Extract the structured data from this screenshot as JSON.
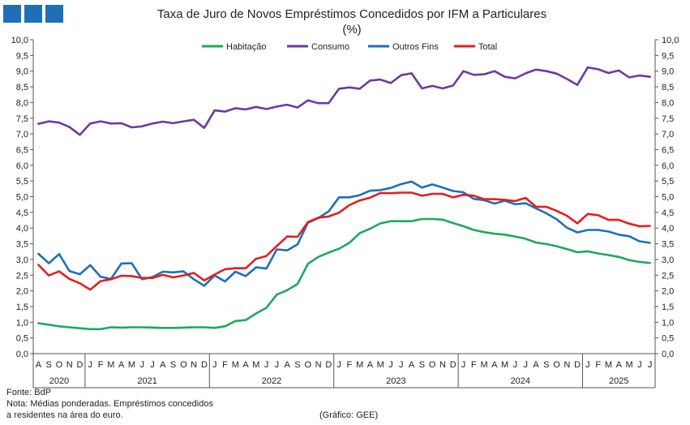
{
  "chart_data": {
    "type": "line",
    "title": "Taxa de Juro de Novos Empréstimos Concedidos por IFM a Particulares",
    "subtitle": "(%)",
    "ylim": [
      0,
      10
    ],
    "yticks": [
      "0,0",
      "0,5",
      "1,0",
      "1,5",
      "2,0",
      "2,5",
      "3,0",
      "3,5",
      "4,0",
      "4,5",
      "5,0",
      "5,5",
      "6,0",
      "6,5",
      "7,0",
      "7,5",
      "8,0",
      "8,5",
      "9,0",
      "9,5",
      "10,0"
    ],
    "x_months": [
      "A",
      "S",
      "O",
      "N",
      "D",
      "J",
      "F",
      "M",
      "A",
      "M",
      "J",
      "J",
      "A",
      "S",
      "O",
      "N",
      "D",
      "J",
      "F",
      "M",
      "A",
      "M",
      "J",
      "J",
      "A",
      "S",
      "O",
      "N",
      "D",
      "J",
      "F",
      "M",
      "A",
      "M",
      "J",
      "J",
      "A",
      "S",
      "O",
      "N",
      "D",
      "J",
      "F",
      "M",
      "A",
      "M",
      "J",
      "J",
      "A",
      "S",
      "O",
      "N",
      "D",
      "J",
      "F",
      "M",
      "A",
      "M",
      "J",
      "J"
    ],
    "x_years": [
      {
        "label": "2020",
        "start": 0,
        "end": 4
      },
      {
        "label": "2021",
        "start": 5,
        "end": 16
      },
      {
        "label": "2022",
        "start": 17,
        "end": 28
      },
      {
        "label": "2023",
        "start": 29,
        "end": 40
      },
      {
        "label": "2024",
        "start": 41,
        "end": 52
      },
      {
        "label": "2025",
        "start": 53,
        "end": 59
      }
    ],
    "series": [
      {
        "name": "Habitação",
        "color": "#1fa85a",
        "values": [
          0.97,
          0.92,
          0.87,
          0.84,
          0.81,
          0.78,
          0.78,
          0.84,
          0.83,
          0.84,
          0.84,
          0.83,
          0.82,
          0.82,
          0.83,
          0.84,
          0.84,
          0.82,
          0.87,
          1.04,
          1.07,
          1.28,
          1.46,
          1.88,
          2.02,
          2.22,
          2.86,
          3.08,
          3.22,
          3.34,
          3.53,
          3.84,
          3.98,
          4.15,
          4.22,
          4.22,
          4.22,
          4.29,
          4.29,
          4.27,
          4.16,
          4.06,
          3.94,
          3.87,
          3.82,
          3.79,
          3.73,
          3.66,
          3.54,
          3.49,
          3.42,
          3.33,
          3.23,
          3.26,
          3.19,
          3.14,
          3.08,
          2.98,
          2.92,
          2.89
        ]
      },
      {
        "name": "Consumo",
        "color": "#6e3aa0",
        "values": [
          7.32,
          7.4,
          7.36,
          7.22,
          6.97,
          7.33,
          7.4,
          7.33,
          7.34,
          7.21,
          7.24,
          7.33,
          7.39,
          7.34,
          7.4,
          7.45,
          7.19,
          7.75,
          7.71,
          7.82,
          7.78,
          7.86,
          7.79,
          7.87,
          7.93,
          7.84,
          8.07,
          7.98,
          7.98,
          8.44,
          8.48,
          8.44,
          8.7,
          8.73,
          8.62,
          8.87,
          8.93,
          8.45,
          8.53,
          8.45,
          8.54,
          9.0,
          8.88,
          8.9,
          9.0,
          8.82,
          8.77,
          8.93,
          9.05,
          9.0,
          8.92,
          8.75,
          8.56,
          9.12,
          9.06,
          8.94,
          9.02,
          8.8,
          8.86,
          8.82
        ]
      },
      {
        "name": "Outros Fins",
        "color": "#1f6fb8",
        "values": [
          3.18,
          2.88,
          3.17,
          2.63,
          2.53,
          2.82,
          2.45,
          2.38,
          2.87,
          2.88,
          2.37,
          2.44,
          2.61,
          2.59,
          2.62,
          2.37,
          2.16,
          2.49,
          2.3,
          2.61,
          2.47,
          2.75,
          2.71,
          3.32,
          3.29,
          3.48,
          4.17,
          4.32,
          4.53,
          4.98,
          4.98,
          5.05,
          5.19,
          5.21,
          5.28,
          5.4,
          5.48,
          5.29,
          5.39,
          5.29,
          5.18,
          5.14,
          4.93,
          4.89,
          4.78,
          4.87,
          4.76,
          4.79,
          4.63,
          4.47,
          4.28,
          4.01,
          3.86,
          3.94,
          3.94,
          3.89,
          3.79,
          3.74,
          3.58,
          3.53
        ]
      },
      {
        "name": "Total",
        "color": "#e41e1e",
        "values": [
          2.83,
          2.49,
          2.62,
          2.38,
          2.24,
          2.04,
          2.31,
          2.37,
          2.48,
          2.47,
          2.41,
          2.41,
          2.51,
          2.43,
          2.49,
          2.57,
          2.33,
          2.52,
          2.69,
          2.72,
          2.72,
          3.02,
          3.11,
          3.43,
          3.73,
          3.72,
          4.19,
          4.33,
          4.37,
          4.49,
          4.73,
          4.88,
          4.97,
          5.12,
          5.11,
          5.13,
          5.13,
          5.03,
          5.09,
          5.09,
          4.98,
          5.06,
          5.03,
          4.92,
          4.92,
          4.9,
          4.86,
          4.96,
          4.68,
          4.68,
          4.55,
          4.39,
          4.15,
          4.45,
          4.41,
          4.26,
          4.26,
          4.14,
          4.06,
          4.07
        ]
      }
    ],
    "legend_position": "top-center",
    "grid": false
  },
  "notes": {
    "fonte": "Fonte: BdP",
    "nota_line1": "Nota: Médias ponderadas. Empréstimos concedidos",
    "nota_line2": "a residentes na área do euro.",
    "grafico": "(Gráfico: GEE)"
  },
  "logo": {
    "color": "#1f6fb8"
  }
}
